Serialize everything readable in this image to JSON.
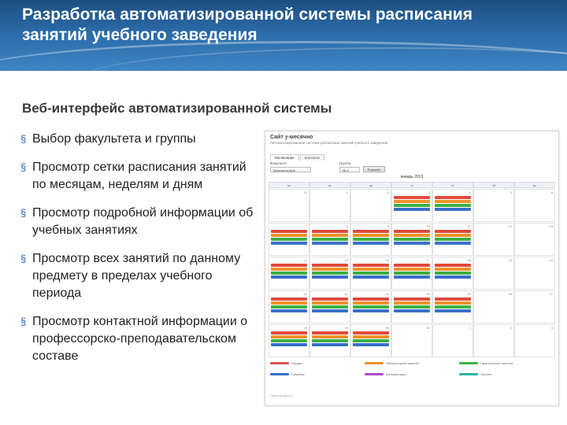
{
  "slide": {
    "title": "Разработка автоматизированной системы расписания занятий учебного заведения",
    "subtitle": "Веб-интерфейс автоматизированной системы",
    "bullet_mark": "§",
    "bullets": [
      "Выбор факультета и группы",
      "Просмотр сетки расписания занятий по месяцам, неделям и дням",
      "Просмотр подробной информации об учебных занятиях",
      "Просмотр всех занятий по данному предмету в пределах учебного периода",
      "Просмотр контактной информации о профессорско-преподавательском составе"
    ]
  },
  "screenshot": {
    "app_title": "Сайт у-месячно",
    "app_subtitle": "Автоматизированная система расписания занятий учебного заведения",
    "tabs": [
      "Расписание",
      "Контакты"
    ],
    "filters": {
      "faculty_label": "Факультет",
      "faculty_value": "Экономический",
      "group_label": "Группа",
      "group_value": "ЭК-5",
      "button_label": "Показать"
    },
    "month_label": "январь 2013",
    "weekdays": [
      "пн",
      "вт",
      "ср",
      "чт",
      "пт",
      "сб",
      "вс"
    ],
    "days": [
      [
        "31",
        "1",
        "2",
        "3",
        "4",
        "5",
        "6"
      ],
      [
        "7",
        "8",
        "9",
        "10",
        "11",
        "12",
        "13"
      ],
      [
        "14",
        "15",
        "16",
        "17",
        "18",
        "19",
        "20"
      ],
      [
        "21",
        "22",
        "23",
        "24",
        "25",
        "26",
        "27"
      ],
      [
        "28",
        "29",
        "30",
        "31",
        "1",
        "2",
        "3"
      ]
    ],
    "legend": [
      {
        "label": "Лекция",
        "color": "#d9534f"
      },
      {
        "label": "Лабораторное занятие",
        "color": "#f0902a"
      },
      {
        "label": "Практическое занятие",
        "color": "#3cb043"
      },
      {
        "label": "Семинар",
        "color": "#3a6fc9"
      },
      {
        "label": "Консультация",
        "color": "#b04ac9"
      },
      {
        "label": "Прочее",
        "color": "#2bb3a8"
      }
    ],
    "footer": "Правообладатель"
  },
  "colors": {
    "header_bg": "#2a6aa8",
    "event_red": "#e04a3c",
    "event_orange": "#f0902a",
    "event_green": "#3cb043",
    "event_blue": "#3a6fc9"
  }
}
